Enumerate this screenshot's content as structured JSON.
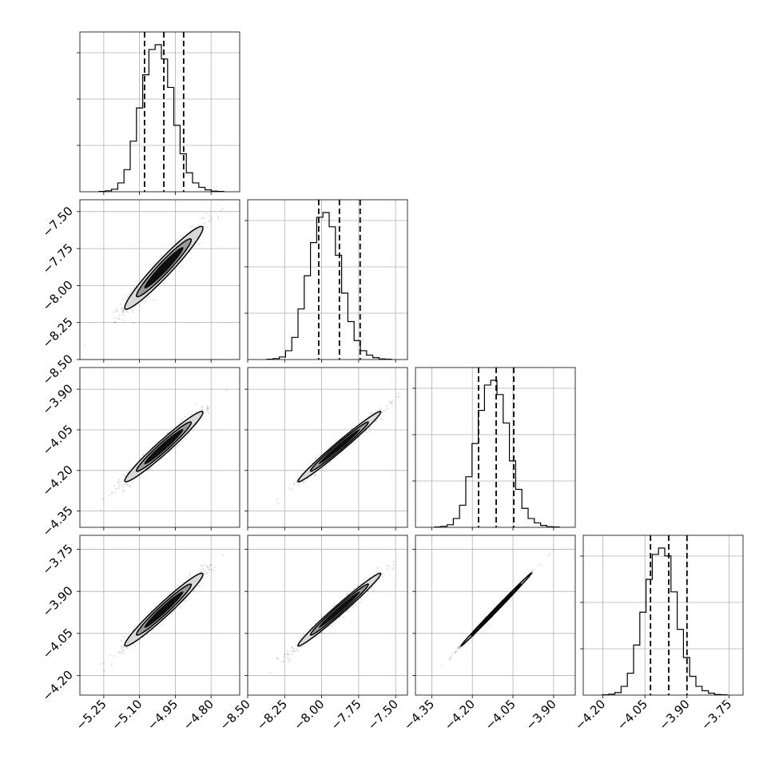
{
  "chart_data": {
    "type": "corner",
    "parameters": [
      {
        "ticks": [
          -5.25,
          -5.1,
          -4.95,
          -4.8
        ],
        "tick_labels": [
          "−5.25",
          "−5.10",
          "−4.95",
          "−4.80"
        ],
        "range": [
          -5.35,
          -4.68
        ],
        "quantiles": [
          -5.079,
          -4.998,
          -4.915
        ]
      },
      {
        "ticks": [
          -8.5,
          -8.25,
          -8.0,
          -7.75,
          -7.5
        ],
        "tick_labels": [
          "−8.50",
          "−8.25",
          "−8.00",
          "−7.75",
          "−7.50"
        ],
        "range": [
          -8.5,
          -7.42
        ],
        "quantiles": [
          -8.02,
          -7.88,
          -7.74
        ]
      },
      {
        "ticks": [
          -4.35,
          -4.2,
          -4.05,
          -3.9
        ],
        "tick_labels": [
          "−4.35",
          "−4.20",
          "−4.05",
          "−3.90"
        ],
        "range": [
          -4.41,
          -3.82
        ],
        "quantiles": [
          -4.177,
          -4.112,
          -4.047
        ]
      },
      {
        "ticks": [
          -4.2,
          -4.05,
          -3.9,
          -3.75
        ],
        "tick_labels": [
          "−4.20",
          "−4.05",
          "−3.90",
          "−3.75"
        ],
        "range": [
          -4.27,
          -3.7
        ],
        "quantiles": [
          -4.03,
          -3.965,
          -3.9
        ]
      }
    ],
    "y_axis_labels": [
      {
        "row": 1,
        "ticks": [
          -7.5,
          -7.75,
          -8.0,
          -8.25,
          -8.5
        ],
        "tick_labels": [
          "−7.50",
          "−7.75",
          "−8.00",
          "−8.25",
          "−8.50"
        ]
      },
      {
        "row": 2,
        "ticks": [
          -3.9,
          -4.05,
          -4.2,
          -4.35
        ],
        "tick_labels": [
          "−3.90",
          "−4.05",
          "−4.20",
          "−4.35"
        ]
      },
      {
        "row": 3,
        "ticks": [
          -3.75,
          -3.9,
          -4.05,
          -4.2
        ],
        "tick_labels": [
          "−3.75",
          "−3.90",
          "−4.05",
          "−4.20"
        ]
      }
    ],
    "histograms": [
      {
        "param": 0,
        "counts": [
          1,
          3,
          8,
          28,
          70,
          160,
          265,
          370,
          450,
          465,
          420,
          330,
          210,
          120,
          60,
          28,
          14,
          6,
          2,
          1
        ]
      },
      {
        "param": 1,
        "counts": [
          1,
          3,
          8,
          28,
          70,
          160,
          265,
          370,
          450,
          465,
          420,
          330,
          210,
          120,
          60,
          28,
          14,
          6,
          2,
          1
        ]
      },
      {
        "param": 2,
        "counts": [
          1,
          3,
          8,
          28,
          70,
          160,
          265,
          370,
          450,
          465,
          420,
          330,
          210,
          120,
          60,
          28,
          14,
          6,
          2,
          1
        ]
      },
      {
        "param": 3,
        "counts": [
          1,
          3,
          8,
          28,
          70,
          160,
          265,
          370,
          450,
          470,
          445,
          330,
          210,
          120,
          60,
          28,
          14,
          6,
          2,
          1
        ]
      }
    ],
    "correlations": {
      "1_0": 0.96,
      "2_0": 0.97,
      "2_1": 0.985,
      "3_0": 0.97,
      "3_1": 0.985,
      "3_2": 0.998
    },
    "grid": true,
    "colors": {
      "line": "#000000",
      "grid": "#b0b0b0",
      "scatter": "#000000",
      "contour_fill": [
        "#d9d9d9",
        "#999999"
      ]
    }
  }
}
